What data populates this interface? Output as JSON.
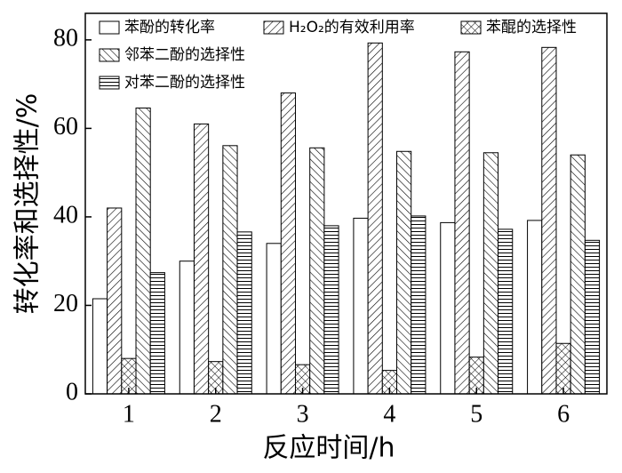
{
  "chart_data": {
    "type": "bar",
    "x_label": "反应时间/h",
    "y_label": "转化率和选择性/%",
    "categories": [
      "1",
      "2",
      "3",
      "4",
      "5",
      "6"
    ],
    "ylim": [
      0,
      86
    ],
    "yticks": [
      0,
      20,
      40,
      60,
      80
    ],
    "grid": false,
    "series": [
      {
        "name": "苯酚的转化率",
        "color": "#000000",
        "hatch": "none",
        "values": [
          21.5,
          30,
          34,
          39.7,
          38.7,
          39.2
        ]
      },
      {
        "name": "H₂O₂的有效利用率",
        "color": "#000000",
        "hatch": "diagonal",
        "values": [
          42,
          61,
          68,
          79.3,
          77.3,
          78.3
        ]
      },
      {
        "name": "苯醌的选择性",
        "color": "#000000",
        "hatch": "cross",
        "values": [
          8,
          7.3,
          6.6,
          5.3,
          8.3,
          11.4
        ]
      },
      {
        "name": "邻苯二酚的选择性",
        "color": "#000000",
        "hatch": "backdiagonal",
        "values": [
          64.6,
          56.1,
          55.6,
          54.8,
          54.5,
          54
        ]
      },
      {
        "name": "对苯二酚的选择性",
        "color": "#000000",
        "hatch": "horizontal",
        "values": [
          27.4,
          36.6,
          38,
          40.2,
          37.2,
          34.7
        ]
      }
    ]
  }
}
